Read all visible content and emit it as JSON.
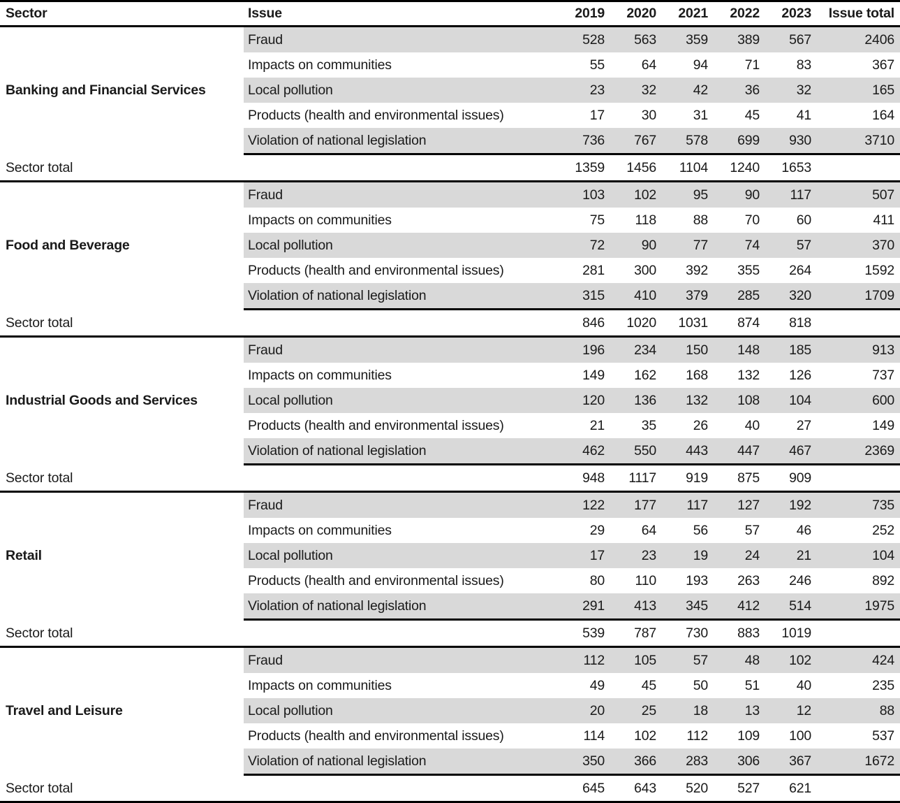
{
  "chart_data": {
    "type": "table",
    "columns": [
      "Sector",
      "Issue",
      "2019",
      "2020",
      "2021",
      "2022",
      "2023",
      "Issue total"
    ],
    "sector_total_label": "Sector total",
    "colors": {
      "stripe": "#d9d9d9",
      "rule": "#000000",
      "text": "#1a1a1a",
      "background": "#ffffff"
    },
    "sectors": [
      {
        "name": "Banking and Financial Services",
        "rows": [
          {
            "issue": "Fraud",
            "values": [
              528,
              563,
              359,
              389,
              567
            ],
            "issue_total": 2406
          },
          {
            "issue": "Impacts on communities",
            "values": [
              55,
              64,
              94,
              71,
              83
            ],
            "issue_total": 367
          },
          {
            "issue": "Local pollution",
            "values": [
              23,
              32,
              42,
              36,
              32
            ],
            "issue_total": 165
          },
          {
            "issue": "Products (health and environmental issues)",
            "values": [
              17,
              30,
              31,
              45,
              41
            ],
            "issue_total": 164
          },
          {
            "issue": "Violation of national legislation",
            "values": [
              736,
              767,
              578,
              699,
              930
            ],
            "issue_total": 3710
          }
        ],
        "sector_total": [
          1359,
          1456,
          1104,
          1240,
          1653
        ]
      },
      {
        "name": "Food and Beverage",
        "rows": [
          {
            "issue": "Fraud",
            "values": [
              103,
              102,
              95,
              90,
              117
            ],
            "issue_total": 507
          },
          {
            "issue": "Impacts on communities",
            "values": [
              75,
              118,
              88,
              70,
              60
            ],
            "issue_total": 411
          },
          {
            "issue": "Local pollution",
            "values": [
              72,
              90,
              77,
              74,
              57
            ],
            "issue_total": 370
          },
          {
            "issue": "Products (health and environmental issues)",
            "values": [
              281,
              300,
              392,
              355,
              264
            ],
            "issue_total": 1592
          },
          {
            "issue": "Violation of national legislation",
            "values": [
              315,
              410,
              379,
              285,
              320
            ],
            "issue_total": 1709
          }
        ],
        "sector_total": [
          846,
          1020,
          1031,
          874,
          818
        ]
      },
      {
        "name": "Industrial Goods and Services",
        "rows": [
          {
            "issue": "Fraud",
            "values": [
              196,
              234,
              150,
              148,
              185
            ],
            "issue_total": 913
          },
          {
            "issue": "Impacts on communities",
            "values": [
              149,
              162,
              168,
              132,
              126
            ],
            "issue_total": 737
          },
          {
            "issue": "Local pollution",
            "values": [
              120,
              136,
              132,
              108,
              104
            ],
            "issue_total": 600
          },
          {
            "issue": "Products (health and environmental issues)",
            "values": [
              21,
              35,
              26,
              40,
              27
            ],
            "issue_total": 149
          },
          {
            "issue": "Violation of national legislation",
            "values": [
              462,
              550,
              443,
              447,
              467
            ],
            "issue_total": 2369
          }
        ],
        "sector_total": [
          948,
          1117,
          919,
          875,
          909
        ]
      },
      {
        "name": "Retail",
        "rows": [
          {
            "issue": "Fraud",
            "values": [
              122,
              177,
              117,
              127,
              192
            ],
            "issue_total": 735
          },
          {
            "issue": "Impacts on communities",
            "values": [
              29,
              64,
              56,
              57,
              46
            ],
            "issue_total": 252
          },
          {
            "issue": "Local pollution",
            "values": [
              17,
              23,
              19,
              24,
              21
            ],
            "issue_total": 104
          },
          {
            "issue": "Products (health and environmental issues)",
            "values": [
              80,
              110,
              193,
              263,
              246
            ],
            "issue_total": 892
          },
          {
            "issue": "Violation of national legislation",
            "values": [
              291,
              413,
              345,
              412,
              514
            ],
            "issue_total": 1975
          }
        ],
        "sector_total": [
          539,
          787,
          730,
          883,
          1019
        ]
      },
      {
        "name": "Travel and Leisure",
        "rows": [
          {
            "issue": "Fraud",
            "values": [
              112,
              105,
              57,
              48,
              102
            ],
            "issue_total": 424
          },
          {
            "issue": "Impacts on communities",
            "values": [
              49,
              45,
              50,
              51,
              40
            ],
            "issue_total": 235
          },
          {
            "issue": "Local pollution",
            "values": [
              20,
              25,
              18,
              13,
              12
            ],
            "issue_total": 88
          },
          {
            "issue": "Products (health and environmental issues)",
            "values": [
              114,
              102,
              112,
              109,
              100
            ],
            "issue_total": 537
          },
          {
            "issue": "Violation of national legislation",
            "values": [
              350,
              366,
              283,
              306,
              367
            ],
            "issue_total": 1672
          }
        ],
        "sector_total": [
          645,
          643,
          520,
          527,
          621
        ]
      }
    ]
  }
}
